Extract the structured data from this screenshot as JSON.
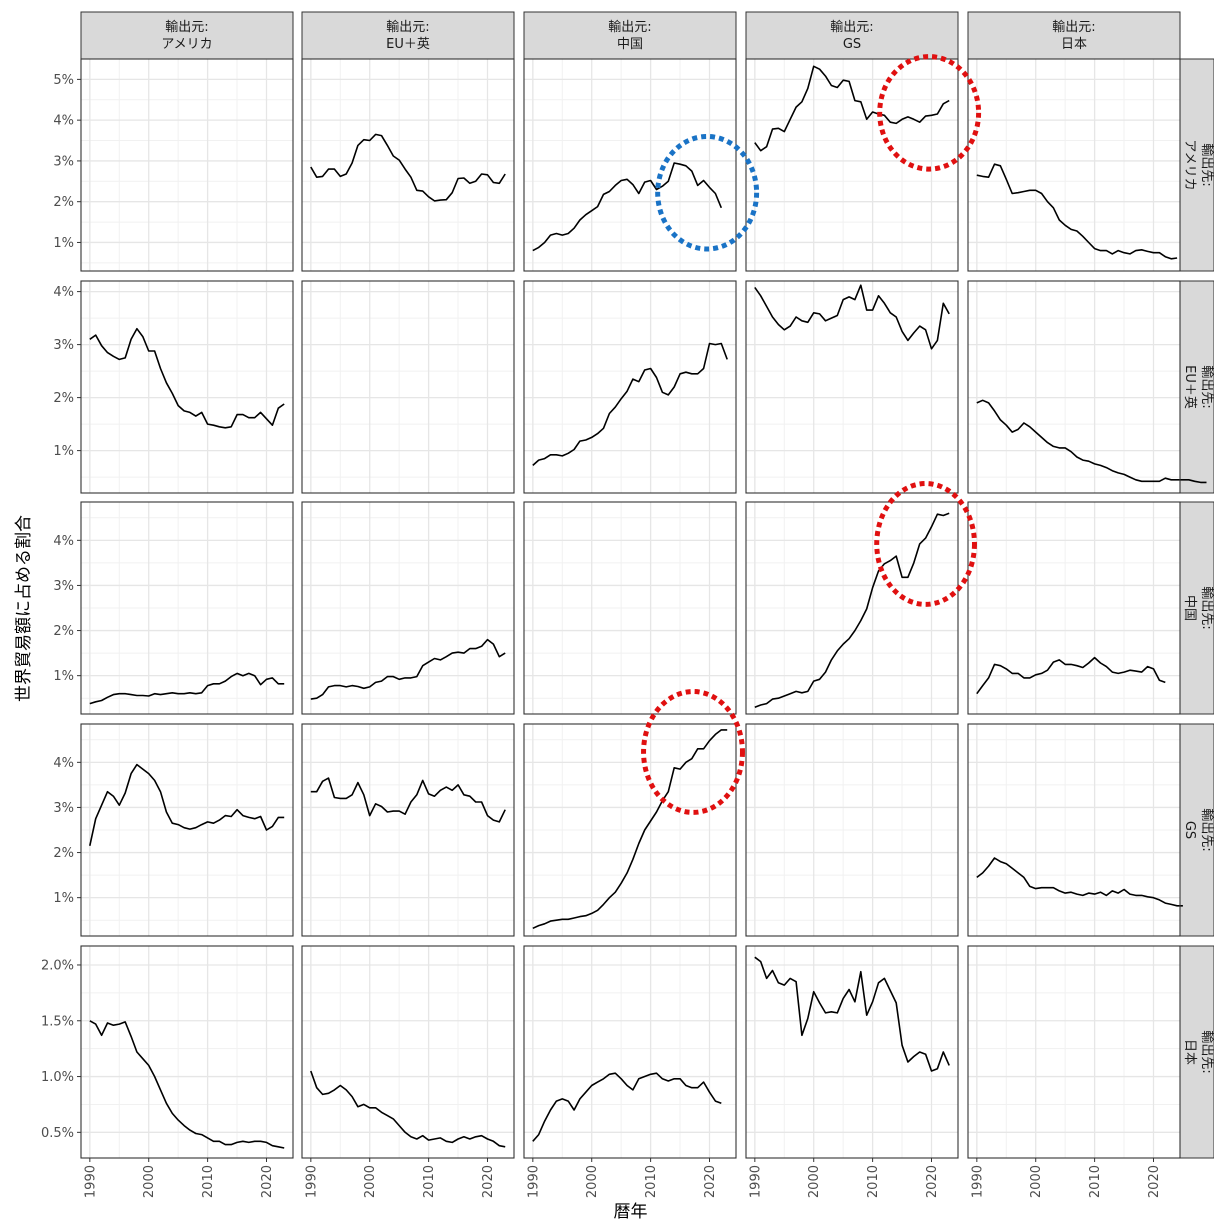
{
  "chart_data": {
    "type": "line",
    "facet_type": "grid",
    "xlabel": "暦年",
    "ylabel": "世界貿易額に占める割合",
    "x_ticks": [
      "1990",
      "2000",
      "2010",
      "2020"
    ],
    "x_range": [
      1988.5,
      2024.5
    ],
    "grid": true,
    "columns": [
      {
        "line1": "輸出元:",
        "line2": "アメリカ"
      },
      {
        "line1": "輸出元:",
        "line2": "EU＋英"
      },
      {
        "line1": "輸出元:",
        "line2": "中国"
      },
      {
        "line1": "輸出元:",
        "line2": "GS"
      },
      {
        "line1": "輸出元:",
        "line2": "日本"
      }
    ],
    "rows": [
      {
        "line1": "輸出先:",
        "line2": "アメリカ",
        "ylim": [
          0.3,
          5.5
        ],
        "yticks": [
          1,
          2,
          3,
          4,
          5
        ],
        "ytick_labels": [
          "1%",
          "2%",
          "3%",
          "4%",
          "5%"
        ]
      },
      {
        "line1": "輸出先:",
        "line2": "EU＋英",
        "ylim": [
          0.2,
          4.2
        ],
        "yticks": [
          1,
          2,
          3,
          4
        ],
        "ytick_labels": [
          "1%",
          "2%",
          "3%",
          "4%"
        ]
      },
      {
        "line1": "輸出先:",
        "line2": "中国",
        "ylim": [
          0.15,
          4.85
        ],
        "yticks": [
          1,
          2,
          3,
          4
        ],
        "ytick_labels": [
          "1%",
          "2%",
          "3%",
          "4%"
        ]
      },
      {
        "line1": "輸出先:",
        "line2": "GS",
        "ylim": [
          0.15,
          4.85
        ],
        "yticks": [
          1,
          2,
          3,
          4
        ],
        "ytick_labels": [
          "1%",
          "2%",
          "3%",
          "4%"
        ]
      },
      {
        "line1": "輸出先:",
        "line2": "日本",
        "ylim": [
          0.27,
          2.17
        ],
        "yticks": [
          0.5,
          1.0,
          1.5,
          2.0
        ],
        "ytick_labels": [
          "0.5%",
          "1.0%",
          "1.5%",
          "2.0%"
        ]
      }
    ],
    "series": [
      {
        "row": 0,
        "col": 1,
        "x_start": 1990,
        "values": [
          2.85,
          2.6,
          2.62,
          2.8,
          2.8,
          2.62,
          2.68,
          2.95,
          3.38,
          3.52,
          3.5,
          3.65,
          3.62,
          3.38,
          3.12,
          3.02,
          2.8,
          2.6,
          2.28,
          2.26,
          2.12,
          2.02,
          2.04,
          2.05,
          2.22,
          2.57,
          2.58,
          2.45,
          2.5,
          2.68,
          2.66,
          2.47,
          2.45,
          2.68
        ]
      },
      {
        "row": 0,
        "col": 2,
        "x_start": 1990,
        "values": [
          0.8,
          0.88,
          1.0,
          1.18,
          1.22,
          1.18,
          1.22,
          1.35,
          1.55,
          1.68,
          1.78,
          1.88,
          2.18,
          2.25,
          2.4,
          2.52,
          2.55,
          2.42,
          2.2,
          2.48,
          2.52,
          2.3,
          2.38,
          2.5,
          2.95,
          2.92,
          2.88,
          2.75,
          2.4,
          2.52,
          2.35,
          2.2,
          1.85
        ]
      },
      {
        "row": 0,
        "col": 3,
        "x_start": 1990,
        "values": [
          3.45,
          3.25,
          3.35,
          3.78,
          3.8,
          3.72,
          4.02,
          4.32,
          4.45,
          4.78,
          5.32,
          5.25,
          5.08,
          4.85,
          4.8,
          4.98,
          4.95,
          4.48,
          4.45,
          4.02,
          4.2,
          4.15,
          4.12,
          3.95,
          3.92,
          4.02,
          4.08,
          4.02,
          3.95,
          4.1,
          4.12,
          4.15,
          4.4,
          4.48
        ]
      },
      {
        "row": 0,
        "col": 4,
        "x_start": 1990,
        "values": [
          2.65,
          2.62,
          2.6,
          2.92,
          2.88,
          2.55,
          2.2,
          2.22,
          2.25,
          2.28,
          2.28,
          2.2,
          2.0,
          1.85,
          1.55,
          1.42,
          1.32,
          1.28,
          1.15,
          1.0,
          0.85,
          0.8,
          0.8,
          0.72,
          0.8,
          0.75,
          0.72,
          0.8,
          0.82,
          0.78,
          0.75,
          0.75,
          0.65,
          0.6,
          0.62
        ]
      },
      {
        "row": 1,
        "col": 0,
        "x_start": 1990,
        "values": [
          3.1,
          3.18,
          2.98,
          2.85,
          2.78,
          2.72,
          2.75,
          3.1,
          3.3,
          3.15,
          2.88,
          2.88,
          2.55,
          2.28,
          2.08,
          1.85,
          1.75,
          1.72,
          1.65,
          1.72,
          1.5,
          1.48,
          1.45,
          1.43,
          1.45,
          1.68,
          1.68,
          1.62,
          1.62,
          1.72,
          1.6,
          1.48,
          1.8,
          1.88
        ]
      },
      {
        "row": 1,
        "col": 2,
        "x_start": 1990,
        "values": [
          0.72,
          0.82,
          0.85,
          0.92,
          0.92,
          0.9,
          0.95,
          1.02,
          1.18,
          1.2,
          1.25,
          1.32,
          1.42,
          1.7,
          1.82,
          1.98,
          2.12,
          2.35,
          2.3,
          2.52,
          2.55,
          2.38,
          2.1,
          2.05,
          2.2,
          2.45,
          2.48,
          2.45,
          2.45,
          2.55,
          3.02,
          3.0,
          3.02,
          2.72
        ]
      },
      {
        "row": 1,
        "col": 3,
        "x_start": 1990,
        "values": [
          4.08,
          3.92,
          3.72,
          3.52,
          3.38,
          3.28,
          3.35,
          3.52,
          3.45,
          3.42,
          3.6,
          3.58,
          3.45,
          3.5,
          3.55,
          3.85,
          3.9,
          3.85,
          4.12,
          3.65,
          3.65,
          3.92,
          3.78,
          3.6,
          3.52,
          3.25,
          3.08,
          3.22,
          3.35,
          3.28,
          2.92,
          3.08,
          3.78,
          3.58
        ]
      },
      {
        "row": 1,
        "col": 4,
        "x_start": 1990,
        "values": [
          1.9,
          1.95,
          1.9,
          1.75,
          1.58,
          1.48,
          1.35,
          1.4,
          1.52,
          1.45,
          1.35,
          1.25,
          1.15,
          1.08,
          1.05,
          1.05,
          0.98,
          0.88,
          0.82,
          0.8,
          0.75,
          0.72,
          0.68,
          0.62,
          0.58,
          0.55,
          0.5,
          0.45,
          0.42,
          0.42,
          0.42,
          0.42,
          0.48,
          0.45,
          0.45,
          0.45,
          0.45,
          0.42,
          0.4,
          0.4
        ]
      },
      {
        "row": 2,
        "col": 0,
        "x_start": 1990,
        "values": [
          0.38,
          0.42,
          0.45,
          0.52,
          0.58,
          0.6,
          0.6,
          0.58,
          0.56,
          0.56,
          0.55,
          0.6,
          0.58,
          0.6,
          0.62,
          0.6,
          0.6,
          0.62,
          0.6,
          0.62,
          0.78,
          0.82,
          0.82,
          0.88,
          0.98,
          1.05,
          1.0,
          1.05,
          1.0,
          0.8,
          0.92,
          0.95,
          0.82,
          0.82
        ]
      },
      {
        "row": 2,
        "col": 1,
        "x_start": 1990,
        "values": [
          0.48,
          0.5,
          0.58,
          0.75,
          0.78,
          0.78,
          0.75,
          0.78,
          0.76,
          0.72,
          0.75,
          0.85,
          0.88,
          0.98,
          0.98,
          0.92,
          0.95,
          0.95,
          0.98,
          1.22,
          1.3,
          1.38,
          1.35,
          1.42,
          1.5,
          1.52,
          1.5,
          1.6,
          1.6,
          1.65,
          1.8,
          1.7,
          1.42,
          1.5
        ]
      },
      {
        "row": 2,
        "col": 3,
        "x_start": 1990,
        "values": [
          0.3,
          0.35,
          0.38,
          0.48,
          0.5,
          0.55,
          0.6,
          0.65,
          0.62,
          0.65,
          0.88,
          0.92,
          1.08,
          1.35,
          1.55,
          1.7,
          1.82,
          2.0,
          2.22,
          2.48,
          2.95,
          3.32,
          3.48,
          3.55,
          3.65,
          3.18,
          3.18,
          3.5,
          3.92,
          4.05,
          4.3,
          4.58,
          4.55,
          4.6
        ]
      },
      {
        "row": 2,
        "col": 4,
        "x_start": 1990,
        "values": [
          0.6,
          0.78,
          0.95,
          1.25,
          1.22,
          1.15,
          1.05,
          1.05,
          0.95,
          0.95,
          1.02,
          1.05,
          1.12,
          1.3,
          1.35,
          1.25,
          1.25,
          1.22,
          1.18,
          1.28,
          1.4,
          1.28,
          1.2,
          1.08,
          1.05,
          1.08,
          1.12,
          1.1,
          1.08,
          1.2,
          1.15,
          0.9,
          0.85
        ]
      },
      {
        "row": 3,
        "col": 0,
        "x_start": 1990,
        "values": [
          2.15,
          2.75,
          3.05,
          3.35,
          3.25,
          3.05,
          3.32,
          3.75,
          3.95,
          3.85,
          3.75,
          3.6,
          3.35,
          2.9,
          2.65,
          2.62,
          2.55,
          2.52,
          2.55,
          2.62,
          2.68,
          2.65,
          2.72,
          2.82,
          2.8,
          2.95,
          2.82,
          2.78,
          2.75,
          2.8,
          2.5,
          2.58,
          2.78,
          2.78
        ]
      },
      {
        "row": 3,
        "col": 1,
        "x_start": 1990,
        "values": [
          3.35,
          3.35,
          3.58,
          3.65,
          3.22,
          3.2,
          3.2,
          3.28,
          3.55,
          3.28,
          2.82,
          3.08,
          3.02,
          2.9,
          2.92,
          2.92,
          2.85,
          3.12,
          3.28,
          3.6,
          3.3,
          3.25,
          3.38,
          3.45,
          3.38,
          3.5,
          3.28,
          3.25,
          3.12,
          3.12,
          2.82,
          2.72,
          2.68,
          2.95
        ]
      },
      {
        "row": 3,
        "col": 2,
        "x_start": 1990,
        "values": [
          0.32,
          0.38,
          0.42,
          0.48,
          0.5,
          0.52,
          0.52,
          0.55,
          0.58,
          0.6,
          0.65,
          0.72,
          0.85,
          1.0,
          1.12,
          1.32,
          1.55,
          1.85,
          2.2,
          2.5,
          2.7,
          2.9,
          3.15,
          3.35,
          3.88,
          3.85,
          4.0,
          4.08,
          4.3,
          4.3,
          4.48,
          4.62,
          4.72,
          4.72
        ]
      },
      {
        "row": 3,
        "col": 4,
        "x_start": 1990,
        "values": [
          1.45,
          1.55,
          1.7,
          1.88,
          1.8,
          1.75,
          1.65,
          1.55,
          1.45,
          1.25,
          1.2,
          1.22,
          1.22,
          1.22,
          1.15,
          1.1,
          1.12,
          1.08,
          1.05,
          1.1,
          1.08,
          1.12,
          1.05,
          1.15,
          1.1,
          1.18,
          1.08,
          1.05,
          1.05,
          1.02,
          1.0,
          0.95,
          0.88,
          0.85,
          0.82,
          0.82
        ]
      },
      {
        "row": 4,
        "col": 0,
        "x_start": 1990,
        "values": [
          1.5,
          1.47,
          1.37,
          1.48,
          1.46,
          1.47,
          1.49,
          1.36,
          1.22,
          1.16,
          1.1,
          1.0,
          0.88,
          0.76,
          0.67,
          0.61,
          0.56,
          0.52,
          0.49,
          0.48,
          0.45,
          0.42,
          0.42,
          0.39,
          0.39,
          0.41,
          0.42,
          0.41,
          0.42,
          0.42,
          0.41,
          0.38,
          0.37,
          0.36
        ]
      },
      {
        "row": 4,
        "col": 1,
        "x_start": 1990,
        "values": [
          1.05,
          0.9,
          0.84,
          0.85,
          0.88,
          0.92,
          0.88,
          0.82,
          0.73,
          0.75,
          0.72,
          0.72,
          0.68,
          0.65,
          0.62,
          0.56,
          0.5,
          0.46,
          0.44,
          0.47,
          0.43,
          0.44,
          0.45,
          0.42,
          0.41,
          0.44,
          0.46,
          0.44,
          0.46,
          0.47,
          0.44,
          0.42,
          0.38,
          0.37
        ]
      },
      {
        "row": 4,
        "col": 2,
        "x_start": 1990,
        "values": [
          0.42,
          0.48,
          0.6,
          0.7,
          0.78,
          0.8,
          0.78,
          0.7,
          0.8,
          0.86,
          0.92,
          0.95,
          0.98,
          1.02,
          1.03,
          0.98,
          0.92,
          0.88,
          0.98,
          1.0,
          1.02,
          1.03,
          0.98,
          0.96,
          0.98,
          0.98,
          0.92,
          0.9,
          0.9,
          0.95,
          0.86,
          0.78,
          0.76
        ]
      },
      {
        "row": 4,
        "col": 3,
        "x_start": 1990,
        "values": [
          2.07,
          2.03,
          1.88,
          1.95,
          1.84,
          1.82,
          1.88,
          1.85,
          1.37,
          1.52,
          1.76,
          1.66,
          1.57,
          1.58,
          1.57,
          1.7,
          1.78,
          1.67,
          1.94,
          1.55,
          1.67,
          1.84,
          1.88,
          1.77,
          1.66,
          1.28,
          1.13,
          1.18,
          1.22,
          1.2,
          1.05,
          1.07,
          1.22,
          1.1
        ]
      }
    ],
    "annotations": [
      {
        "shape": "ellipse",
        "row": 0,
        "col": 2,
        "color": "#1a73c6",
        "style": "dotted",
        "cx_year": 2019.6,
        "cy_value": 2.22,
        "rx_years": 8.4,
        "ry_value": 1.38
      },
      {
        "shape": "ellipse",
        "row": 0,
        "col": 3,
        "color": "#e01010",
        "style": "dotted",
        "cx_year": 2019.6,
        "cy_value": 4.18,
        "rx_years": 8.4,
        "ry_value": 1.38
      },
      {
        "shape": "ellipse",
        "row": 2,
        "col": 3,
        "color": "#e01010",
        "style": "dotted",
        "cx_year": 2019.0,
        "cy_value": 3.92,
        "rx_years": 8.3,
        "ry_value": 1.34
      },
      {
        "shape": "ellipse",
        "row": 3,
        "col": 2,
        "color": "#e01010",
        "style": "dotted",
        "cx_year": 2017.2,
        "cy_value": 4.23,
        "rx_years": 8.4,
        "ry_value": 1.34
      }
    ]
  }
}
